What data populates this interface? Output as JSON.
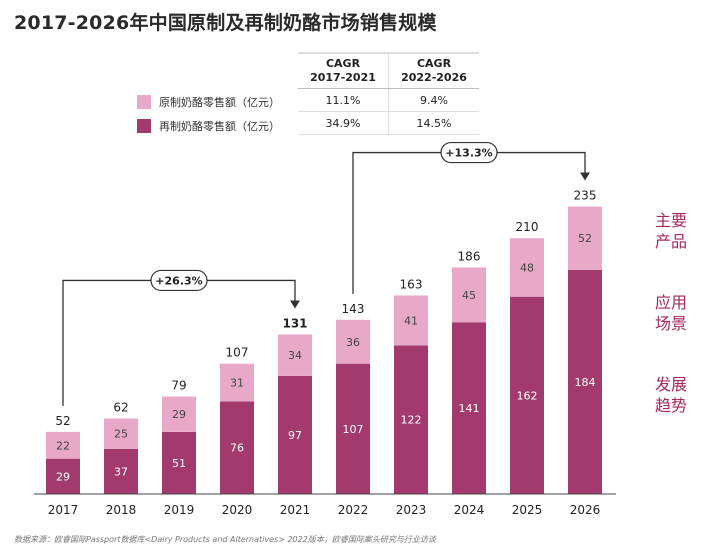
{
  "title": "2017-2026年中国原制及再制奶酪市场销售规模",
  "colors": {
    "original_cheese": "#e8a9c8",
    "processed_cheese": "#a23a6e",
    "highlight_total": "#a23a6e",
    "accent_text": "#a52a5c"
  },
  "cagr_table": {
    "headers": [
      "",
      "CAGR\n2017-2021",
      "CAGR\n2022-2026"
    ],
    "rows": [
      {
        "label": "原制奶酪零售额（亿元）",
        "values": [
          "11.1%",
          "9.4%"
        ]
      },
      {
        "label": "再制奶酪零售额（亿元）",
        "values": [
          "34.9%",
          "14.5%"
        ]
      }
    ]
  },
  "side_labels": [
    "主要产品",
    "应用场景",
    "发展趋势"
  ],
  "source": "数据来源：欧睿国际Passport数据库<Dairy Products and Alternatives> 2022版本，欧睿国际案头研究与行业访谈",
  "chart_data": {
    "type": "bar",
    "stacked": true,
    "categories": [
      "2017",
      "2018",
      "2019",
      "2020",
      "2021",
      "2022",
      "2023",
      "2024",
      "2025",
      "2026"
    ],
    "series": [
      {
        "name": "再制奶酪零售额（亿元）",
        "values": [
          29,
          37,
          51,
          76,
          97,
          107,
          122,
          141,
          162,
          184
        ]
      },
      {
        "name": "原制奶酪零售额（亿元）",
        "values": [
          22,
          25,
          29,
          31,
          34,
          36,
          41,
          45,
          48,
          52
        ]
      }
    ],
    "totals": [
      52,
      62,
      79,
      107,
      131,
      143,
      163,
      186,
      210,
      235
    ],
    "highlight_total_category": "2021",
    "annotations": [
      {
        "text": "+26.3%",
        "from": "2017",
        "to": "2021"
      },
      {
        "text": "+13.3%",
        "from": "2022",
        "to": "2026"
      }
    ],
    "ylim": [
      0,
      240
    ],
    "grid": false,
    "legend": "top-left"
  }
}
